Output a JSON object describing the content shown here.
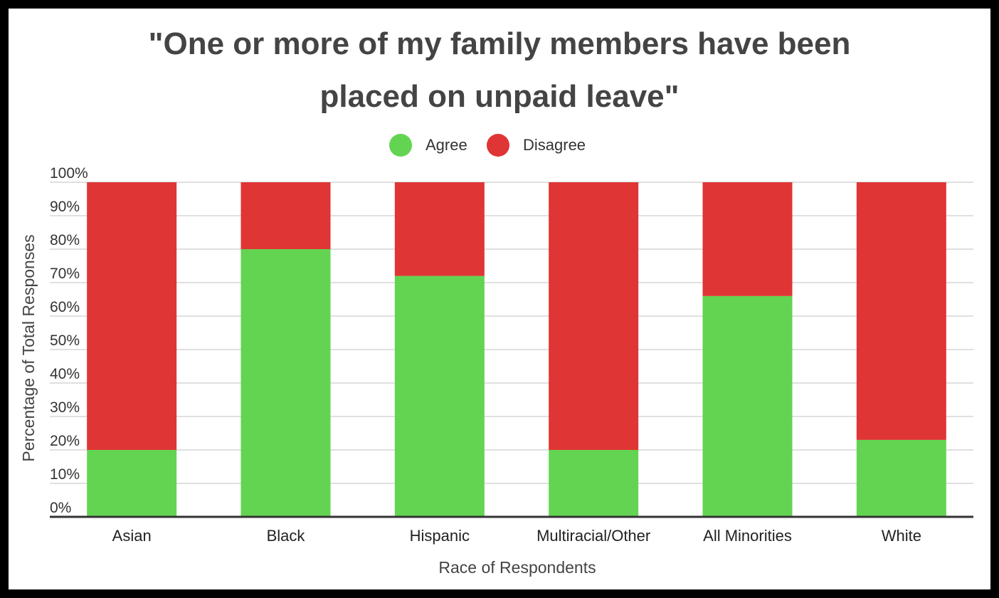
{
  "chart_data": {
    "type": "bar",
    "stacked": true,
    "title_lines": [
      "\"One or more of my family members have been",
      "placed on unpaid leave\""
    ],
    "xlabel": "Race of Respondents",
    "ylabel": "Percentage of Total Responses",
    "ylim": [
      0,
      100
    ],
    "yticks": [
      "0%",
      "10%",
      "20%",
      "30%",
      "40%",
      "50%",
      "60%",
      "70%",
      "80%",
      "90%",
      "100%"
    ],
    "categories": [
      "Asian",
      "Black",
      "Hispanic",
      "Multiracial/Other",
      "All Minorities",
      "White"
    ],
    "series": [
      {
        "name": "Agree",
        "color": "#63d452",
        "values": [
          20,
          80,
          72,
          20,
          66,
          23
        ]
      },
      {
        "name": "Disagree",
        "color": "#e03535",
        "values": [
          80,
          20,
          28,
          80,
          34,
          77
        ]
      }
    ],
    "legend_position": "top-center",
    "grid": true
  }
}
